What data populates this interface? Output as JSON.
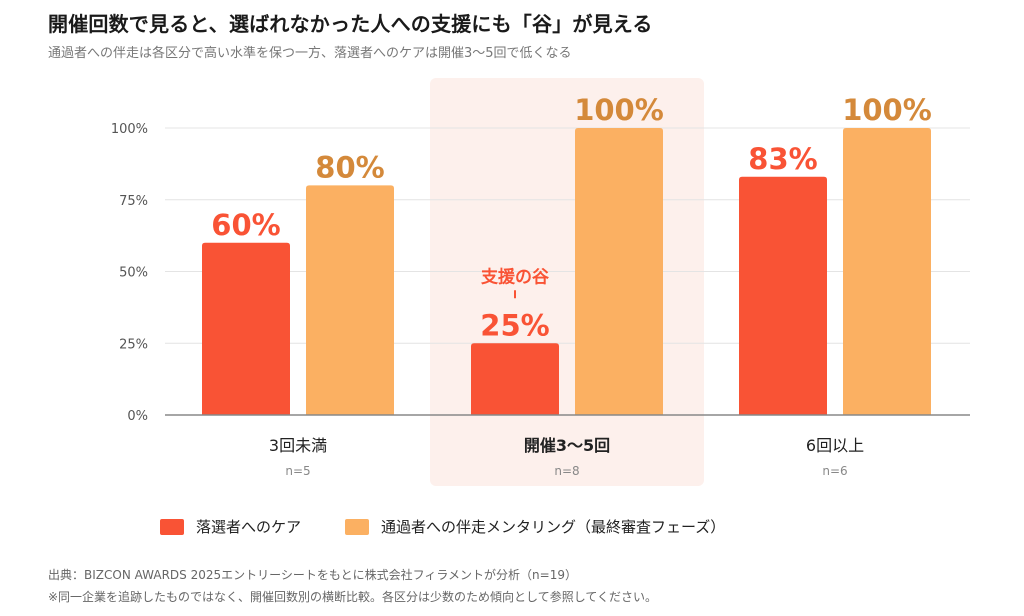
{
  "header": {
    "title": "開催回数で見ると、選ばれなかった人への支援にも「谷」が見える",
    "subtitle": "通過者への伴走は各区分で高い水準を保つ一方、落選者へのケアは開催3〜5回で低くなる"
  },
  "chart_data": {
    "type": "bar",
    "categories": [
      "3回未満",
      "開催3〜5回",
      "6回以上"
    ],
    "category_counts": [
      "n=5",
      "n=8",
      "n=6"
    ],
    "highlight_category": "開催3〜5回",
    "series": [
      {
        "name": "落選者へのケア",
        "values": [
          60,
          25,
          83
        ],
        "labels": [
          "60%",
          "25%",
          "83%"
        ],
        "color": "#f95335"
      },
      {
        "name": "通過者への伴走メンタリング（最終審査フェーズ）",
        "values": [
          80,
          100,
          100
        ],
        "labels": [
          "80%",
          "100%",
          "100%"
        ],
        "color": "#fbb062"
      }
    ],
    "yticks": [
      "0%",
      "25%",
      "50%",
      "75%",
      "100%"
    ],
    "ytick_values": [
      0,
      25,
      50,
      75,
      100
    ],
    "ylim": [
      0,
      100
    ],
    "grid": true,
    "legend_position": "bottom",
    "annotation": {
      "text": "支援の谷",
      "category": "開催3〜5回",
      "series": "落選者へのケア"
    },
    "colors": {
      "annotation": "#f95335",
      "highlight_bg": "#fdf0ec",
      "label_series2": "#d4893a",
      "grid": "#e4e4e4",
      "axis": "#888888"
    }
  },
  "footer": {
    "source": "出典：BIZCON AWARDS 2025エントリーシートをもとに株式会社フィラメントが分析（n=19）",
    "note": "※同一企業を追跡したものではなく、開催回数別の横断比較。各区分は少数のため傾向として参照してください。"
  }
}
